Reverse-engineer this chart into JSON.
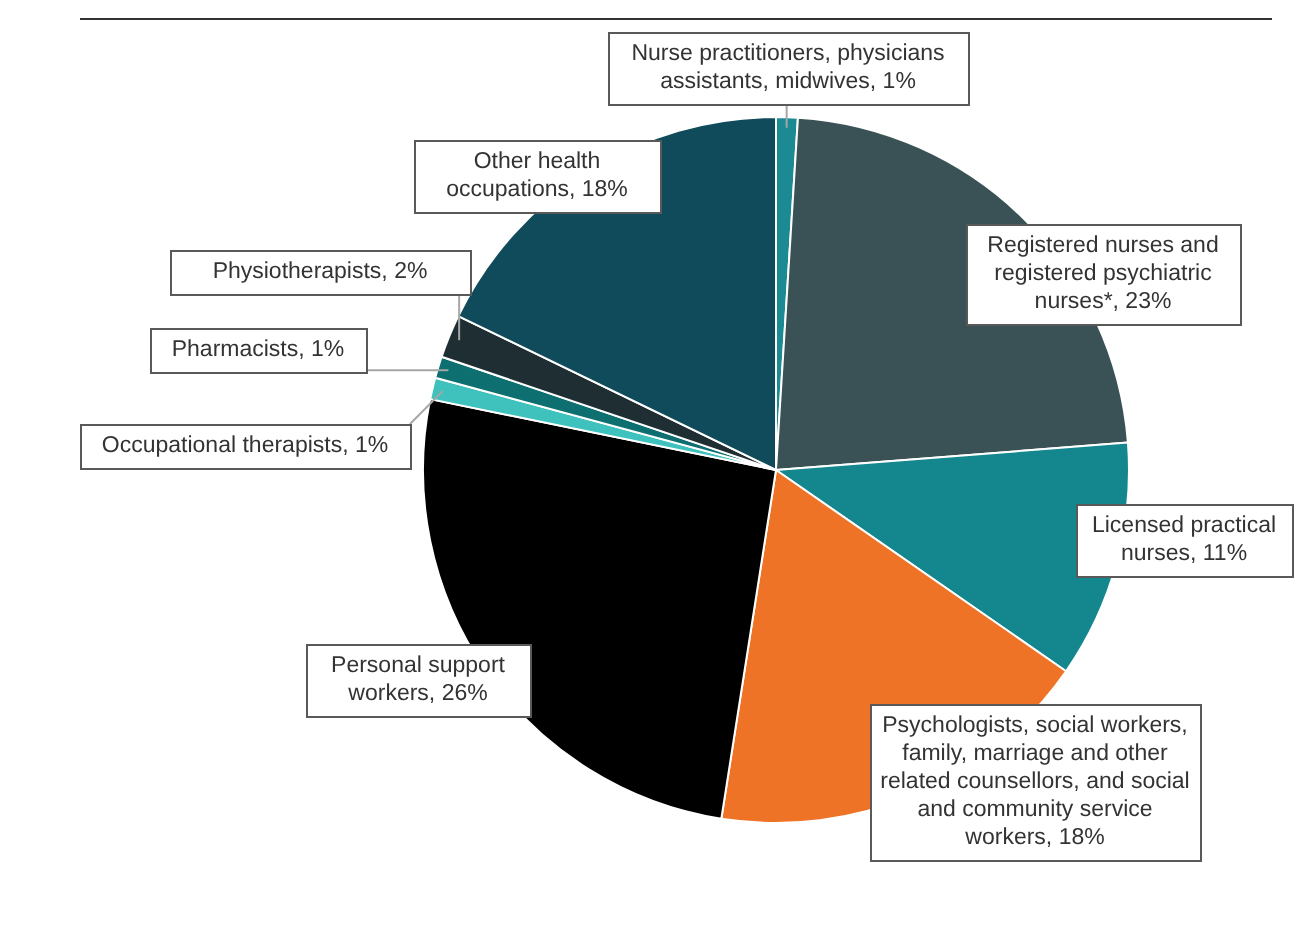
{
  "chart_data": {
    "type": "pie",
    "categories": [
      "Nurse practitioners, physicians assistants, midwives",
      "Registered nurses and registered psychiatric nurses*",
      "Licensed practical nurses",
      "Psychologists, social workers, family, marriage and other related counsellors, and social and community service workers",
      "Personal support workers",
      "Occupational therapists",
      "Pharmacists",
      "Physiotherapists",
      "Other health occupations"
    ],
    "values": [
      1,
      23,
      11,
      18,
      26,
      1,
      1,
      2,
      18
    ],
    "value_labels": [
      "1%",
      "23%",
      "11%",
      "18%",
      "26%",
      "1%",
      "1%",
      "2%",
      "18%"
    ],
    "colors": [
      "#1b8a93",
      "#3a5255",
      "#13868e",
      "#ee7326",
      "#000000",
      "#3fc1bd",
      "#0e6f70",
      "#1f2e33",
      "#0f4b5a"
    ],
    "legend": false
  }
}
